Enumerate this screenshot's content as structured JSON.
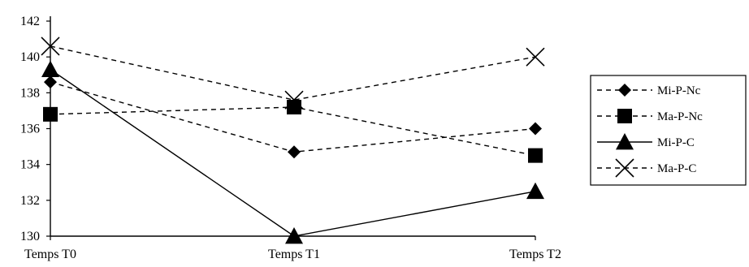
{
  "chart_data": {
    "type": "line",
    "categories": [
      "Temps T0",
      "Temps T1",
      "Temps T2"
    ],
    "ylim": [
      130,
      142
    ],
    "yticks": [
      130,
      132,
      134,
      136,
      138,
      140,
      142
    ],
    "grid": false,
    "legend_position": "right",
    "series": [
      {
        "name": "Mi-P-Nc",
        "marker": "diamond",
        "line_style": "dashed",
        "color": "#000000",
        "values": [
          138.6,
          134.7,
          136.0
        ]
      },
      {
        "name": "Ma-P-Nc",
        "marker": "square",
        "line_style": "dashed",
        "color": "#000000",
        "values": [
          136.8,
          137.2,
          134.5
        ]
      },
      {
        "name": "Mi-P-C",
        "marker": "triangle",
        "line_style": "solid",
        "color": "#000000",
        "values": [
          139.3,
          130.0,
          132.5
        ]
      },
      {
        "name": "Ma-P-C",
        "marker": "x",
        "line_style": "dashed",
        "color": "#000000",
        "values": [
          140.6,
          137.6,
          140.0
        ]
      }
    ]
  }
}
